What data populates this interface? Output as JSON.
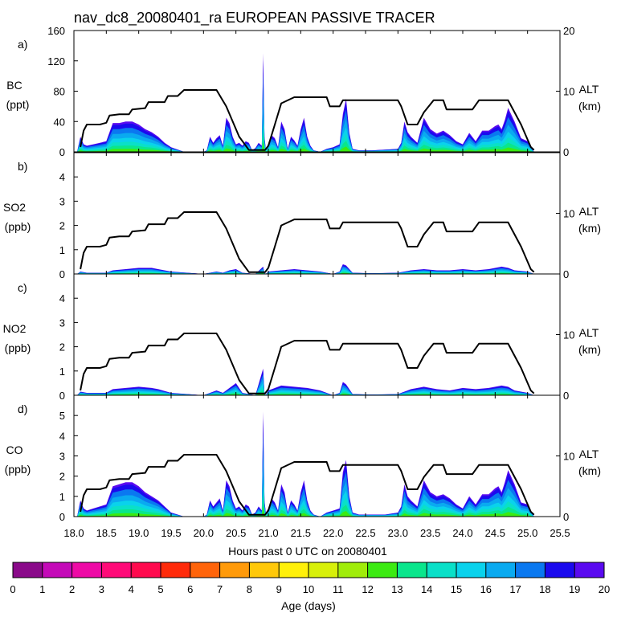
{
  "title": "nav_dc8_20080401_ra EUROPEAN PASSIVE TRACER",
  "chart_data": {
    "type": "area",
    "x": {
      "label": "Hours past 0 UTC on 20080401",
      "range": [
        18.0,
        25.5
      ],
      "ticks": [
        "18.0",
        "18.5",
        "19.0",
        "19.5",
        "20.0",
        "20.5",
        "21.0",
        "21.5",
        "22.0",
        "22.5",
        "23.0",
        "23.5",
        "24.0",
        "24.5",
        "25.0",
        "25.5"
      ]
    },
    "right_axis": {
      "label": "ALT",
      "unit": "(km)",
      "range": [
        0,
        20
      ],
      "ticks_panel_a": [
        "0",
        "10",
        "20"
      ],
      "ticks_other": [
        "0",
        "10"
      ]
    },
    "altitude_km": {
      "x": [
        18.1,
        18.15,
        18.2,
        18.4,
        18.5,
        18.55,
        18.7,
        18.85,
        18.9,
        19.1,
        19.15,
        19.4,
        19.45,
        19.6,
        19.7,
        20.2,
        20.35,
        20.55,
        20.7,
        20.95,
        21.0,
        21.1,
        21.2,
        21.4,
        21.6,
        21.9,
        21.95,
        22.1,
        22.15,
        23.0,
        23.05,
        23.15,
        23.3,
        23.4,
        23.55,
        23.7,
        23.75,
        23.9,
        24.15,
        24.25,
        24.35,
        24.7,
        24.75,
        24.9,
        25.05,
        25.1
      ],
      "y": [
        0.8,
        3.5,
        4.5,
        4.5,
        4.8,
        6.0,
        6.2,
        6.2,
        7.0,
        7.2,
        8.2,
        8.2,
        9.2,
        9.2,
        10.2,
        10.2,
        7.5,
        2.5,
        0.3,
        0.3,
        1.0,
        4.5,
        8.0,
        9.0,
        9.0,
        9.0,
        7.5,
        7.5,
        8.5,
        8.5,
        7.5,
        4.5,
        4.5,
        6.5,
        8.5,
        8.5,
        7.0,
        7.0,
        7.0,
        8.5,
        8.5,
        8.5,
        7.5,
        4.5,
        0.8,
        0.3
      ]
    },
    "panels": [
      {
        "id": "a)",
        "species": "BC",
        "unit": "(ppt)",
        "ylim": [
          0,
          160
        ],
        "yticks": [
          "0",
          "40",
          "80",
          "120",
          "160"
        ],
        "right_ticks": [
          "0",
          "10",
          "20"
        ],
        "tracer_x": [
          18.05,
          18.1,
          18.15,
          18.2,
          18.3,
          18.4,
          18.5,
          18.6,
          18.7,
          18.8,
          18.9,
          19.0,
          19.1,
          19.2,
          19.3,
          19.4,
          19.5,
          19.7,
          20.0,
          20.05,
          20.1,
          20.15,
          20.2,
          20.25,
          20.3,
          20.35,
          20.4,
          20.45,
          20.5,
          20.55,
          20.6,
          20.65,
          20.7,
          20.75,
          20.8,
          20.85,
          20.9,
          20.92,
          20.94,
          20.96,
          21.0,
          21.05,
          21.1,
          21.15,
          21.2,
          21.25,
          21.3,
          21.35,
          21.4,
          21.45,
          21.5,
          21.55,
          21.6,
          21.65,
          21.7,
          21.8,
          21.9,
          22.0,
          22.1,
          22.15,
          22.2,
          22.25,
          22.3,
          22.4,
          22.6,
          22.8,
          23.0,
          23.05,
          23.1,
          23.15,
          23.2,
          23.3,
          23.4,
          23.5,
          23.6,
          23.7,
          23.8,
          23.9,
          24.0,
          24.1,
          24.2,
          24.3,
          24.4,
          24.5,
          24.55,
          24.6,
          24.65,
          24.7,
          24.8,
          24.9,
          25.0,
          25.1
        ],
        "tracer_total": [
          0,
          20,
          10,
          8,
          10,
          12,
          14,
          38,
          38,
          40,
          40,
          36,
          30,
          26,
          20,
          12,
          6,
          0,
          0,
          2,
          20,
          12,
          18,
          22,
          8,
          45,
          38,
          20,
          10,
          12,
          8,
          14,
          12,
          2,
          5,
          12,
          8,
          130,
          20,
          4,
          10,
          22,
          18,
          6,
          40,
          30,
          4,
          20,
          15,
          8,
          30,
          45,
          20,
          8,
          2,
          0,
          4,
          6,
          10,
          50,
          70,
          25,
          4,
          2,
          2,
          3,
          4,
          12,
          40,
          26,
          20,
          12,
          45,
          30,
          24,
          28,
          22,
          14,
          10,
          25,
          14,
          28,
          28,
          34,
          36,
          30,
          42,
          58,
          40,
          18,
          14,
          0
        ]
      },
      {
        "id": "b)",
        "species": "SO2",
        "unit": "(ppb)",
        "ylim": [
          0,
          5
        ],
        "yticks": [
          "0",
          "1",
          "2",
          "3",
          "4"
        ],
        "right_ticks": [
          "0",
          "10"
        ],
        "tracer_x": [
          18.05,
          18.1,
          18.2,
          18.4,
          18.5,
          18.6,
          18.8,
          19.0,
          19.2,
          19.3,
          19.5,
          20.0,
          20.1,
          20.2,
          20.3,
          20.4,
          20.5,
          20.6,
          20.8,
          20.92,
          20.94,
          20.96,
          21.0,
          21.2,
          21.4,
          21.6,
          21.8,
          22.0,
          22.1,
          22.15,
          22.2,
          22.3,
          22.6,
          23.0,
          23.1,
          23.2,
          23.4,
          23.6,
          23.8,
          24.0,
          24.2,
          24.4,
          24.6,
          24.7,
          24.8,
          25.0,
          25.1
        ],
        "tracer_total": [
          0,
          0.1,
          0.05,
          0.05,
          0.05,
          0.15,
          0.2,
          0.25,
          0.25,
          0.2,
          0.1,
          0,
          0.05,
          0.1,
          0.05,
          0.15,
          0.2,
          0.05,
          0,
          0.3,
          0.05,
          0,
          0.1,
          0.15,
          0.2,
          0.15,
          0.1,
          0,
          0.1,
          0.4,
          0.35,
          0.05,
          0.03,
          0.05,
          0.1,
          0.15,
          0.2,
          0.15,
          0.15,
          0.2,
          0.15,
          0.2,
          0.3,
          0.25,
          0.15,
          0.1,
          0
        ]
      },
      {
        "id": "c)",
        "species": "NO2",
        "unit": "(ppb)",
        "ylim": [
          0,
          5
        ],
        "yticks": [
          "0",
          "1",
          "2",
          "3",
          "4"
        ],
        "right_ticks": [
          "0",
          "10"
        ],
        "tracer_x": [
          18.05,
          18.1,
          18.2,
          18.4,
          18.5,
          18.6,
          18.8,
          19.0,
          19.2,
          19.3,
          19.5,
          20.0,
          20.1,
          20.2,
          20.3,
          20.4,
          20.5,
          20.6,
          20.8,
          20.92,
          20.94,
          20.96,
          21.0,
          21.2,
          21.4,
          21.6,
          21.8,
          22.0,
          22.1,
          22.15,
          22.2,
          22.3,
          22.6,
          23.0,
          23.1,
          23.2,
          23.4,
          23.6,
          23.8,
          24.0,
          24.2,
          24.4,
          24.6,
          24.7,
          24.8,
          25.0,
          25.1
        ],
        "tracer_total": [
          0,
          0.15,
          0.1,
          0.1,
          0.1,
          0.25,
          0.3,
          0.35,
          0.3,
          0.25,
          0.1,
          0,
          0.1,
          0.2,
          0.1,
          0.3,
          0.5,
          0.1,
          0,
          1.1,
          0.1,
          0,
          0.2,
          0.4,
          0.35,
          0.3,
          0.2,
          0,
          0.1,
          0.55,
          0.45,
          0.05,
          0.03,
          0.05,
          0.15,
          0.25,
          0.35,
          0.25,
          0.2,
          0.3,
          0.25,
          0.3,
          0.4,
          0.35,
          0.2,
          0.1,
          0
        ]
      },
      {
        "id": "d)",
        "species": "CO",
        "unit": "(ppb)",
        "ylim": [
          0,
          6
        ],
        "yticks": [
          "0",
          "1",
          "2",
          "3",
          "4",
          "5"
        ],
        "right_ticks": [
          "0",
          "10"
        ],
        "tracer_x": [
          18.05,
          18.1,
          18.15,
          18.2,
          18.3,
          18.4,
          18.5,
          18.6,
          18.7,
          18.8,
          18.9,
          19.0,
          19.1,
          19.2,
          19.3,
          19.4,
          19.5,
          19.7,
          20.0,
          20.05,
          20.1,
          20.15,
          20.2,
          20.25,
          20.3,
          20.35,
          20.4,
          20.45,
          20.5,
          20.55,
          20.6,
          20.65,
          20.7,
          20.75,
          20.8,
          20.85,
          20.9,
          20.92,
          20.94,
          20.96,
          21.0,
          21.05,
          21.1,
          21.15,
          21.2,
          21.25,
          21.3,
          21.35,
          21.4,
          21.45,
          21.5,
          21.55,
          21.6,
          21.65,
          21.7,
          21.8,
          21.9,
          22.0,
          22.1,
          22.15,
          22.2,
          22.25,
          22.3,
          22.4,
          22.6,
          22.8,
          23.0,
          23.05,
          23.1,
          23.15,
          23.2,
          23.3,
          23.4,
          23.5,
          23.6,
          23.7,
          23.8,
          23.9,
          24.0,
          24.1,
          24.2,
          24.3,
          24.4,
          24.5,
          24.55,
          24.6,
          24.65,
          24.7,
          24.8,
          24.9,
          25.0,
          25.1
        ],
        "tracer_total": [
          0,
          0.8,
          0.4,
          0.3,
          0.4,
          0.5,
          0.6,
          1.5,
          1.6,
          1.7,
          1.7,
          1.5,
          1.2,
          1.0,
          0.8,
          0.5,
          0.2,
          0,
          0,
          0.1,
          0.8,
          0.5,
          0.7,
          0.9,
          0.3,
          1.8,
          1.5,
          0.8,
          0.4,
          0.5,
          0.3,
          0.6,
          0.5,
          0.1,
          0.2,
          0.5,
          0.3,
          5.2,
          0.8,
          0.2,
          0.4,
          0.9,
          0.7,
          0.3,
          1.6,
          1.2,
          0.2,
          0.8,
          0.6,
          0.3,
          1.2,
          1.8,
          0.8,
          0.3,
          0.1,
          0,
          0.2,
          0.3,
          0.4,
          2.2,
          2.8,
          1.0,
          0.2,
          0.1,
          0.1,
          0.1,
          0.2,
          0.5,
          1.6,
          1.0,
          0.8,
          0.5,
          1.8,
          1.2,
          1.0,
          1.1,
          0.9,
          0.6,
          0.4,
          1.0,
          0.6,
          1.1,
          1.1,
          1.4,
          1.5,
          1.2,
          1.7,
          2.3,
          1.6,
          0.7,
          0.6,
          0
        ]
      }
    ],
    "age_layer_fractions_top_to_bottom": [
      0.07,
      0.14,
      0.17,
      0.16,
      0.13,
      0.12,
      0.11,
      0.1
    ],
    "colorbar": {
      "label": "Age (days)",
      "ticks": [
        "0",
        "1",
        "2",
        "3",
        "4",
        "5",
        "6",
        "7",
        "8",
        "9",
        "10",
        "11",
        "12",
        "13",
        "14",
        "15",
        "16",
        "17",
        "18",
        "19",
        "20"
      ],
      "colors": [
        "#8a0a8a",
        "#c40ab8",
        "#ee0aa6",
        "#ff0a78",
        "#ff0a4e",
        "#ff2a0a",
        "#ff640a",
        "#ff9a0a",
        "#ffc80a",
        "#fff00a",
        "#d8f00a",
        "#a0ec0a",
        "#3cea12",
        "#0ae68c",
        "#0ae0c8",
        "#0ad2ec",
        "#0aaaf0",
        "#0a78f0",
        "#1a0aee",
        "#5a0af0"
      ]
    },
    "layer_colors_top_to_bottom": [
      "#5a0af0",
      "#1a0aee",
      "#0a78f0",
      "#0aaaf0",
      "#0ad2ec",
      "#0ae0c8",
      "#0ae68c",
      "#3cea12"
    ]
  }
}
